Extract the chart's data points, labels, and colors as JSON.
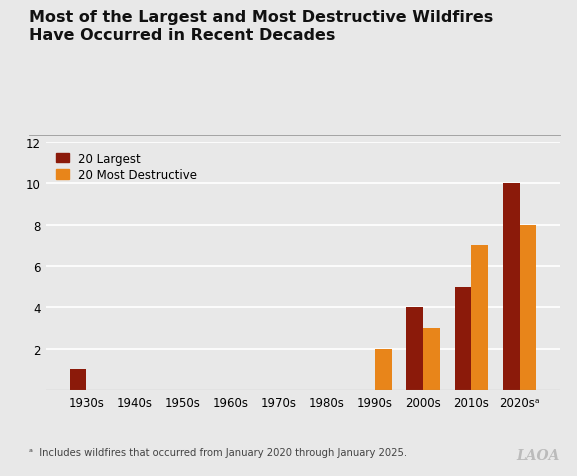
{
  "title": "Most of the Largest and Most Destructive Wildfires\nHave Occurred in Recent Decades",
  "categories": [
    "1930s",
    "1940s",
    "1950s",
    "1960s",
    "1970s",
    "1980s",
    "1990s",
    "2000s",
    "2010s",
    "2020sᵃ"
  ],
  "largest": [
    1,
    0,
    0,
    0,
    0,
    0,
    0,
    4,
    5,
    10
  ],
  "destructive": [
    0,
    0,
    0,
    0,
    0,
    0,
    2,
    3,
    7,
    8
  ],
  "color_largest": "#8B1A0A",
  "color_destructive": "#E8851A",
  "legend_largest": "20 Largest",
  "legend_destructive": "20 Most Destructive",
  "ylim": [
    0,
    12
  ],
  "yticks": [
    0,
    2,
    4,
    6,
    8,
    10,
    12
  ],
  "footnote": "ᵃ  Includes wildfires that occurred from January 2020 through January 2025.",
  "logo_text": "LAOA",
  "background_color": "#E8E8E8",
  "title_fontsize": 11.5,
  "bar_width": 0.35
}
